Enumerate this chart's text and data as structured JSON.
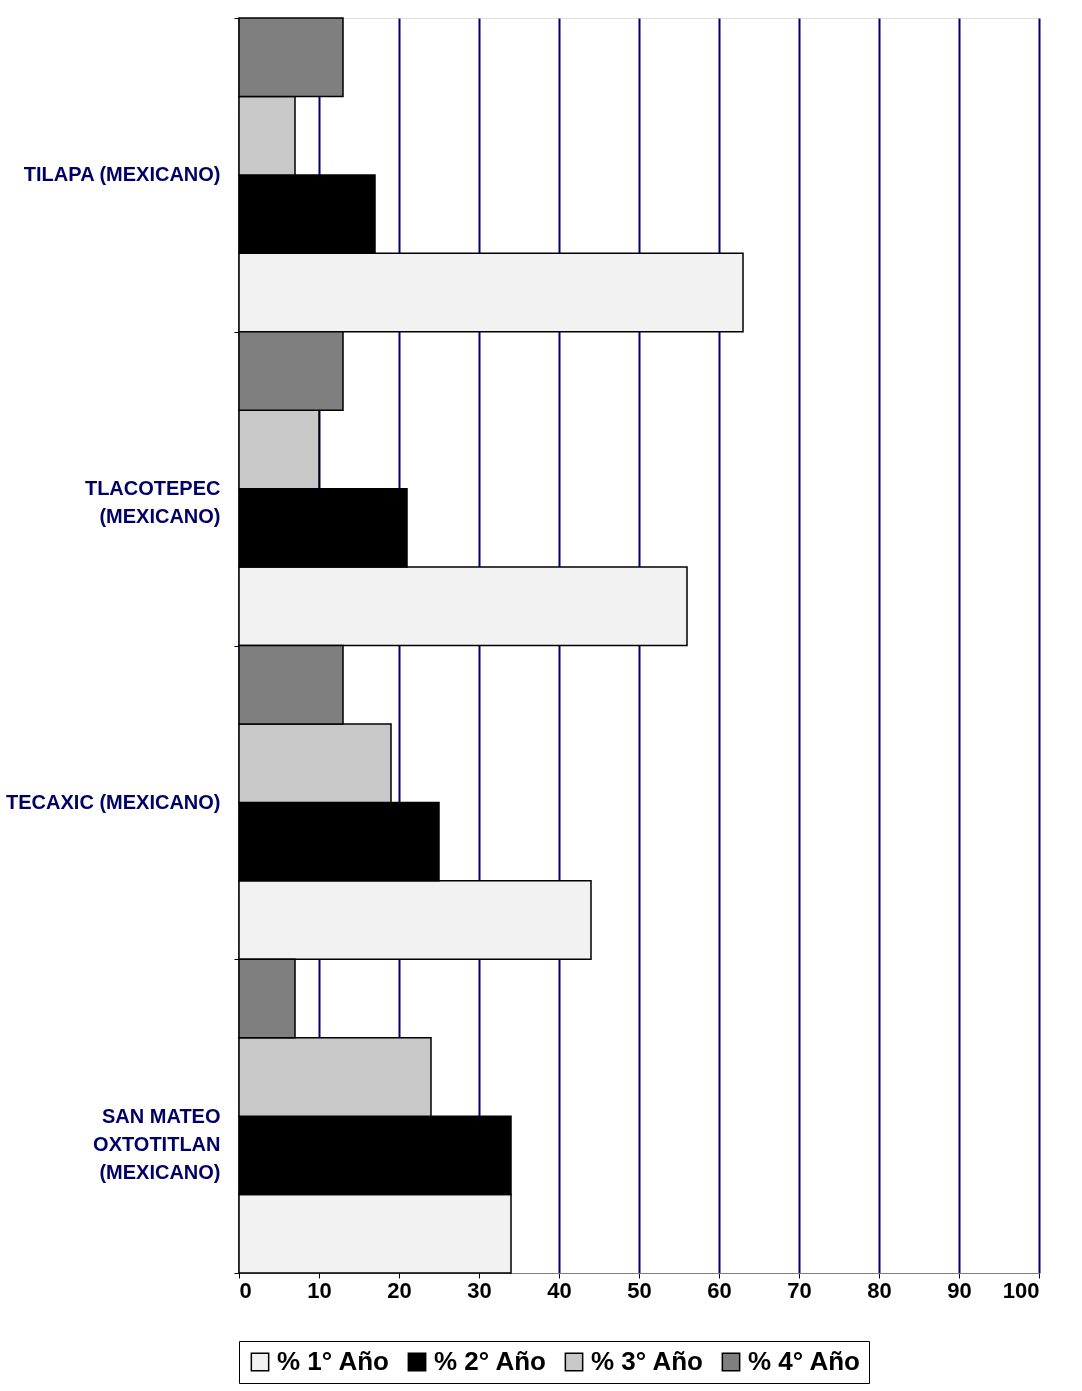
{
  "chart_data": {
    "type": "bar",
    "orientation": "horizontal",
    "categories": [
      "TILAPA (MEXICANO)",
      "TLACOTEPEC (MEXICANO)",
      "TECAXIC (MEXICANO)",
      "SAN MATEO OXTOTITLAN (MEXICANO)"
    ],
    "series": [
      {
        "name": "% 1° Año",
        "color": "#f2f2f2",
        "values": [
          63,
          56,
          44,
          34
        ]
      },
      {
        "name": "% 2° Año",
        "color": "#000000",
        "values": [
          17,
          21,
          25,
          34
        ]
      },
      {
        "name": "% 3° Año",
        "color": "#c8c8c8",
        "values": [
          7,
          10,
          19,
          24
        ]
      },
      {
        "name": "% 4° Año",
        "color": "#7f7f7f",
        "values": [
          13,
          13,
          13,
          7
        ]
      }
    ],
    "xlim": [
      0,
      100
    ],
    "xticks": [
      0,
      10,
      20,
      30,
      40,
      50,
      60,
      70,
      80,
      90,
      100
    ],
    "grid": "x",
    "legend": "bottom"
  }
}
